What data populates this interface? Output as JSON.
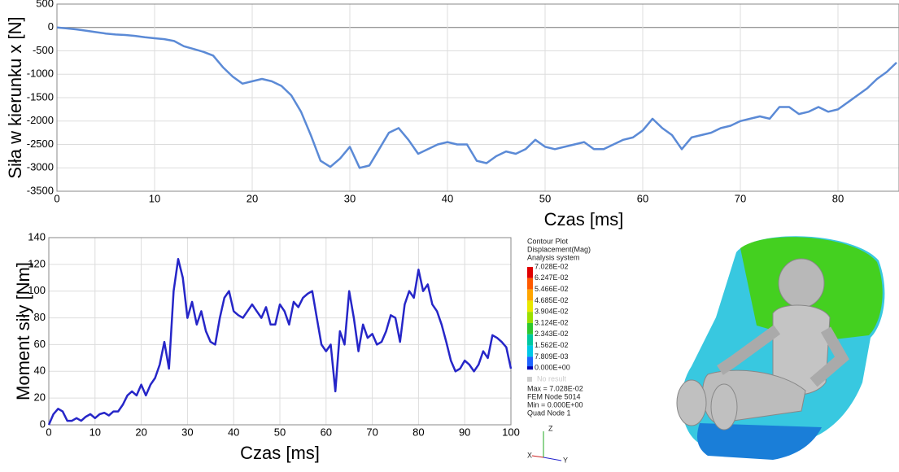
{
  "chart_data": [
    {
      "type": "line",
      "x_label": "Czas [ms]",
      "y_label": "Siła w kierunku x [N]",
      "color": "#5b8ad6",
      "grid": true,
      "xlim": [
        0,
        86.25
      ],
      "ylim": [
        -3500,
        500
      ],
      "xticks": [
        0,
        10,
        20,
        30,
        40,
        50,
        60,
        70,
        80
      ],
      "yticks": [
        -3500,
        -3000,
        -2500,
        -2000,
        -1500,
        -1000,
        -500,
        0,
        500
      ],
      "x": [
        0,
        1,
        2,
        3,
        4,
        5,
        6,
        7,
        8,
        9,
        10,
        11,
        12,
        13,
        14,
        15,
        16,
        17,
        18,
        19,
        20,
        21,
        22,
        23,
        24,
        25,
        26,
        27,
        28,
        29,
        30,
        31,
        32,
        33,
        34,
        35,
        36,
        37,
        38,
        39,
        40,
        41,
        42,
        43,
        44,
        45,
        46,
        47,
        48,
        49,
        50,
        51,
        52,
        53,
        54,
        55,
        56,
        57,
        58,
        59,
        60,
        61,
        62,
        63,
        64,
        65,
        66,
        67,
        68,
        69,
        70,
        71,
        72,
        73,
        74,
        75,
        76,
        77,
        78,
        79,
        80,
        81,
        82,
        83,
        84,
        85,
        86
      ],
      "values": [
        0,
        -20,
        -40,
        -70,
        -100,
        -130,
        -150,
        -160,
        -180,
        -210,
        -230,
        -250,
        -290,
        -400,
        -460,
        -520,
        -600,
        -850,
        -1050,
        -1200,
        -1150,
        -1100,
        -1150,
        -1250,
        -1450,
        -1800,
        -2300,
        -2850,
        -2980,
        -2800,
        -2550,
        -3000,
        -2950,
        -2600,
        -2250,
        -2150,
        -2400,
        -2700,
        -2600,
        -2500,
        -2450,
        -2500,
        -2500,
        -2850,
        -2900,
        -2750,
        -2650,
        -2700,
        -2600,
        -2400,
        -2550,
        -2600,
        -2550,
        -2500,
        -2450,
        -2600,
        -2600,
        -2500,
        -2400,
        -2350,
        -2200,
        -1950,
        -2150,
        -2300,
        -2600,
        -2350,
        -2300,
        -2250,
        -2150,
        -2100,
        -2000,
        -1950,
        -1900,
        -1950,
        -1700,
        -1700,
        -1850,
        -1800,
        -1700,
        -1800,
        -1750,
        -1600,
        -1450,
        -1300,
        -1100,
        -950,
        -750
      ]
    },
    {
      "type": "line",
      "x_label": "Czas [ms]",
      "y_label": "Moment siły [Nm]",
      "color": "#2626c8",
      "grid": true,
      "xlim": [
        0,
        100
      ],
      "ylim": [
        0,
        140
      ],
      "xticks": [
        0,
        10,
        20,
        30,
        40,
        50,
        60,
        70,
        80,
        90,
        100
      ],
      "yticks": [
        0,
        20,
        40,
        60,
        80,
        100,
        120,
        140
      ],
      "x": [
        0,
        1,
        2,
        3,
        4,
        5,
        6,
        7,
        8,
        9,
        10,
        11,
        12,
        13,
        14,
        15,
        16,
        17,
        18,
        19,
        20,
        21,
        22,
        23,
        24,
        25,
        26,
        27,
        28,
        29,
        30,
        31,
        32,
        33,
        34,
        35,
        36,
        37,
        38,
        39,
        40,
        41,
        42,
        43,
        44,
        45,
        46,
        47,
        48,
        49,
        50,
        51,
        52,
        53,
        54,
        55,
        56,
        57,
        58,
        59,
        60,
        61,
        62,
        63,
        64,
        65,
        66,
        67,
        68,
        69,
        70,
        71,
        72,
        73,
        74,
        75,
        76,
        77,
        78,
        79,
        80,
        81,
        82,
        83,
        84,
        85,
        86,
        87,
        88,
        89,
        90,
        91,
        92,
        93,
        94,
        95,
        96,
        97,
        98,
        99,
        100
      ],
      "values": [
        0,
        8,
        12,
        10,
        3,
        3,
        5,
        3,
        6,
        8,
        5,
        8,
        9,
        7,
        10,
        10,
        15,
        22,
        25,
        22,
        30,
        22,
        30,
        35,
        45,
        62,
        42,
        100,
        124,
        110,
        80,
        92,
        75,
        85,
        70,
        62,
        60,
        80,
        95,
        100,
        85,
        82,
        80,
        85,
        90,
        85,
        80,
        88,
        75,
        75,
        90,
        85,
        75,
        92,
        88,
        95,
        98,
        100,
        80,
        60,
        55,
        60,
        25,
        70,
        60,
        100,
        80,
        55,
        75,
        65,
        68,
        60,
        62,
        70,
        82,
        80,
        62,
        90,
        100,
        95,
        116,
        100,
        105,
        90,
        85,
        75,
        62,
        48,
        40,
        42,
        48,
        45,
        40,
        45,
        55,
        50,
        67,
        65,
        62,
        58,
        42
      ]
    }
  ],
  "contour_legend": {
    "header": [
      "Contour Plot",
      "Displacement(Mag)",
      "Analysis system"
    ],
    "labels": [
      "7.028E-02",
      "6.247E-02",
      "5.466E-02",
      "4.685E-02",
      "3.904E-02",
      "3.124E-02",
      "2.343E-02",
      "1.562E-02",
      "7.809E-03",
      "0.000E+00"
    ],
    "colors": [
      "#e00000",
      "#ff5a00",
      "#ffa500",
      "#e8e800",
      "#9be000",
      "#2ec82e",
      "#00c8a0",
      "#00c8e6",
      "#1e64ff",
      "#0000b4"
    ],
    "no_result": "No result",
    "footer": [
      "Max = 7.028E-02",
      "FEM Node 5014",
      "Min = 0.000E+00",
      "Quad Node 1"
    ],
    "axes": [
      "Z",
      "X",
      "Y"
    ]
  }
}
